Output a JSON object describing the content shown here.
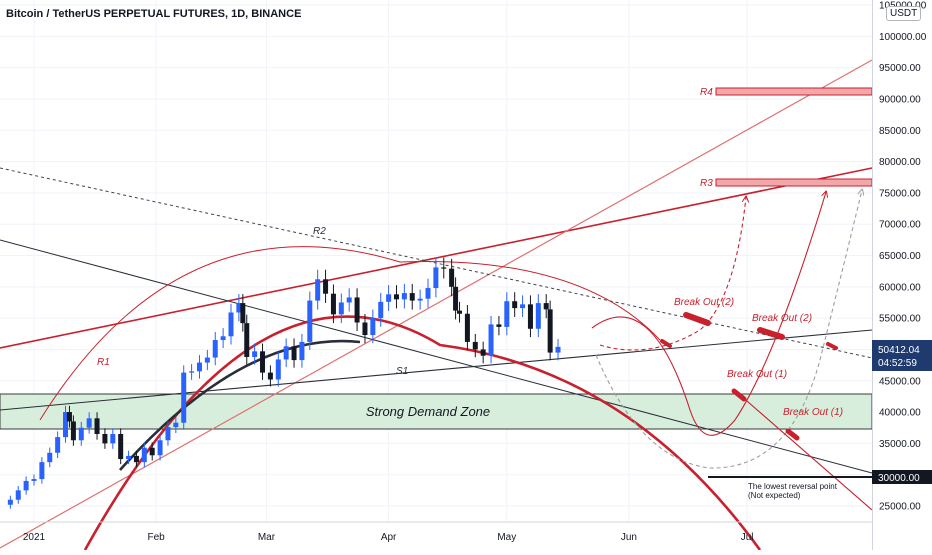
{
  "header": {
    "title": "Bitcoin / TetherUS PERPETUAL FUTURES, 1D, BINANCE",
    "currency": "USDT"
  },
  "price_badges": {
    "current_price": "50412.04",
    "countdown": "04:52:59",
    "reversal_price": "30000.00"
  },
  "colors": {
    "up": "#2962ff",
    "down": "#131722",
    "accent_red": "#c8202d",
    "zone_fill": "#d8eedd",
    "badge_blue": "#1e3a6e"
  },
  "annotations": {
    "demand_zone": "Strong Demand Zone",
    "r1": "R1",
    "r2": "R2",
    "r3": "R3",
    "r4": "R4",
    "s1": "S1",
    "breakout_2_a": "Break Out (2)",
    "breakout_2_b": "Break Out (2)",
    "breakout_1_a": "Break Out (1)",
    "breakout_1_b": "Break Out (1)",
    "reversal_note_1": "The lowest reversal point",
    "reversal_note_2": "(Not expected)"
  },
  "chart_data": {
    "type": "candlestick",
    "title": "Bitcoin / TetherUS PERPETUAL FUTURES, 1D, BINANCE",
    "yaxis_ticks": [
      25000,
      30000,
      35000,
      40000,
      45000,
      50000,
      55000,
      60000,
      65000,
      70000,
      75000,
      80000,
      85000,
      90000,
      95000,
      100000,
      105000
    ],
    "ylim": [
      24000,
      105000
    ],
    "x_tick_labels": [
      "2021",
      "Feb",
      "Mar",
      "Apr",
      "May",
      "Jun",
      "Jul"
    ],
    "x_tick_days": [
      0,
      31,
      59,
      90,
      120,
      151,
      181
    ],
    "candles_close": [
      {
        "d": -6,
        "c": 26000
      },
      {
        "d": -4,
        "c": 27500
      },
      {
        "d": -2,
        "c": 29000
      },
      {
        "d": 0,
        "c": 29300
      },
      {
        "d": 2,
        "c": 32000
      },
      {
        "d": 4,
        "c": 33500
      },
      {
        "d": 6,
        "c": 36000
      },
      {
        "d": 8,
        "c": 40000
      },
      {
        "d": 9,
        "c": 38500
      },
      {
        "d": 10,
        "c": 35500
      },
      {
        "d": 12,
        "c": 37500
      },
      {
        "d": 14,
        "c": 39000
      },
      {
        "d": 16,
        "c": 36500
      },
      {
        "d": 18,
        "c": 35000
      },
      {
        "d": 20,
        "c": 36500
      },
      {
        "d": 22,
        "c": 32500
      },
      {
        "d": 24,
        "c": 33000
      },
      {
        "d": 26,
        "c": 32000
      },
      {
        "d": 28,
        "c": 34300
      },
      {
        "d": 30,
        "c": 33100
      },
      {
        "d": 32,
        "c": 35500
      },
      {
        "d": 34,
        "c": 37600
      },
      {
        "d": 36,
        "c": 38300
      },
      {
        "d": 38,
        "c": 46300
      },
      {
        "d": 40,
        "c": 46500
      },
      {
        "d": 42,
        "c": 47900
      },
      {
        "d": 44,
        "c": 48700
      },
      {
        "d": 46,
        "c": 51500
      },
      {
        "d": 48,
        "c": 52100
      },
      {
        "d": 50,
        "c": 55900
      },
      {
        "d": 52,
        "c": 57400
      },
      {
        "d": 53,
        "c": 54200
      },
      {
        "d": 54,
        "c": 48800
      },
      {
        "d": 56,
        "c": 49700
      },
      {
        "d": 58,
        "c": 46300
      },
      {
        "d": 60,
        "c": 45200
      },
      {
        "d": 62,
        "c": 48400
      },
      {
        "d": 64,
        "c": 50500
      },
      {
        "d": 66,
        "c": 48300
      },
      {
        "d": 68,
        "c": 51200
      },
      {
        "d": 70,
        "c": 57800
      },
      {
        "d": 72,
        "c": 61200
      },
      {
        "d": 74,
        "c": 58900
      },
      {
        "d": 76,
        "c": 55600
      },
      {
        "d": 78,
        "c": 57500
      },
      {
        "d": 80,
        "c": 58300
      },
      {
        "d": 82,
        "c": 54300
      },
      {
        "d": 84,
        "c": 52300
      },
      {
        "d": 86,
        "c": 55000
      },
      {
        "d": 88,
        "c": 57600
      },
      {
        "d": 90,
        "c": 58800
      },
      {
        "d": 92,
        "c": 58000
      },
      {
        "d": 94,
        "c": 59000
      },
      {
        "d": 96,
        "c": 57800
      },
      {
        "d": 98,
        "c": 58100
      },
      {
        "d": 100,
        "c": 59800
      },
      {
        "d": 102,
        "c": 63100
      },
      {
        "d": 104,
        "c": 62900
      },
      {
        "d": 106,
        "c": 60000
      },
      {
        "d": 107,
        "c": 56200
      },
      {
        "d": 108,
        "c": 55700
      },
      {
        "d": 110,
        "c": 51200
      },
      {
        "d": 112,
        "c": 50000
      },
      {
        "d": 114,
        "c": 49000
      },
      {
        "d": 116,
        "c": 54000
      },
      {
        "d": 118,
        "c": 53600
      },
      {
        "d": 120,
        "c": 57700
      },
      {
        "d": 122,
        "c": 56600
      },
      {
        "d": 124,
        "c": 57200
      },
      {
        "d": 126,
        "c": 53300
      },
      {
        "d": 128,
        "c": 57400
      },
      {
        "d": 130,
        "c": 56400
      },
      {
        "d": 131,
        "c": 49500
      },
      {
        "d": 133,
        "c": 50412
      }
    ]
  }
}
